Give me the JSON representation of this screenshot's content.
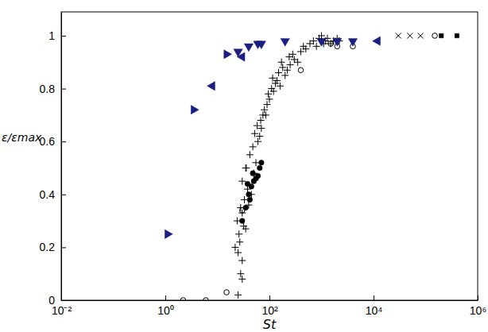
{
  "chart_data": {
    "type": "scatter",
    "x_label": "St",
    "y_label": "ε/εmax",
    "log": "x",
    "xlim": [
      0.01,
      1000000
    ],
    "ylim": [
      0,
      1.09
    ],
    "xticks": [
      {
        "value": 0.01,
        "label": "10⁻²"
      },
      {
        "value": 1,
        "label": "10⁰"
      },
      {
        "value": 100,
        "label": "10²"
      },
      {
        "value": 10000,
        "label": "10⁴"
      },
      {
        "value": 1000000,
        "label": "10⁶"
      }
    ],
    "yticks": [
      0,
      0.2,
      0.4,
      0.6,
      0.8,
      1
    ],
    "series": [
      {
        "marker": "plus",
        "color": "#000000",
        "x": [
          25,
          28,
          30,
          22,
          26,
          32,
          27,
          24,
          30,
          35,
          28,
          33,
          40,
          38,
          45,
          30,
          36,
          50,
          42,
          55,
          48,
          60,
          52,
          65,
          58,
          70,
          75,
          68,
          80,
          90,
          85,
          100,
          95,
          110,
          120,
          130,
          115,
          140,
          150,
          160,
          180,
          200,
          170,
          220,
          250,
          240,
          300,
          280,
          350,
          400,
          450,
          500,
          600,
          700,
          800,
          900,
          1000,
          1100,
          1200,
          1300,
          1500,
          1700,
          2000,
          2200,
          25,
          30,
          35
        ],
        "values": [
          0.02,
          0.1,
          0.15,
          0.2,
          0.25,
          0.28,
          0.22,
          0.3,
          0.33,
          0.27,
          0.35,
          0.38,
          0.36,
          0.42,
          0.4,
          0.45,
          0.5,
          0.48,
          0.55,
          0.52,
          0.58,
          0.6,
          0.63,
          0.62,
          0.66,
          0.65,
          0.7,
          0.68,
          0.72,
          0.74,
          0.7,
          0.76,
          0.78,
          0.8,
          0.79,
          0.82,
          0.84,
          0.83,
          0.86,
          0.81,
          0.88,
          0.85,
          0.9,
          0.87,
          0.89,
          0.92,
          0.91,
          0.93,
          0.9,
          0.94,
          0.96,
          0.95,
          0.97,
          0.98,
          0.96,
          0.99,
          1.0,
          0.97,
          0.98,
          0.99,
          0.97,
          0.98,
          0.99,
          0.98,
          0.18,
          0.08,
          0.5
        ]
      },
      {
        "marker": "circle",
        "color": "#000000",
        "x": [
          30,
          35,
          40,
          45,
          50,
          55,
          60,
          38,
          42,
          48,
          65,
          70
        ],
        "values": [
          0.3,
          0.35,
          0.4,
          0.43,
          0.45,
          0.46,
          0.47,
          0.44,
          0.38,
          0.48,
          0.5,
          0.52
        ]
      },
      {
        "marker": "circle-open",
        "color": "#000000",
        "x": [
          2.2,
          6,
          15,
          30,
          400,
          1500,
          2000,
          4000,
          150000
        ],
        "values": [
          0,
          0,
          0.03,
          0.34,
          0.87,
          0.97,
          0.96,
          0.96,
          1.0
        ]
      },
      {
        "marker": "x",
        "color": "#000000",
        "x": [
          30000,
          50000,
          80000
        ],
        "values": [
          1,
          1,
          1
        ]
      },
      {
        "marker": "square",
        "color": "#000000",
        "x": [
          200000,
          400000
        ],
        "values": [
          1,
          1
        ]
      },
      {
        "marker": "triangle-right",
        "color": "#1a1f80",
        "x": [
          1.1,
          3.5,
          15
        ],
        "values": [
          0.25,
          0.72,
          0.93
        ]
      },
      {
        "marker": "triangle-left",
        "color": "#1a1f80",
        "x": [
          8,
          30,
          12000
        ],
        "values": [
          0.81,
          0.92,
          0.98
        ]
      },
      {
        "marker": "triangle-down",
        "color": "#1a1f80",
        "x": [
          25,
          40,
          60,
          70,
          200,
          1000,
          2000,
          4000
        ],
        "values": [
          0.94,
          0.96,
          0.97,
          0.97,
          0.98,
          0.98,
          0.98,
          0.98
        ]
      }
    ]
  }
}
